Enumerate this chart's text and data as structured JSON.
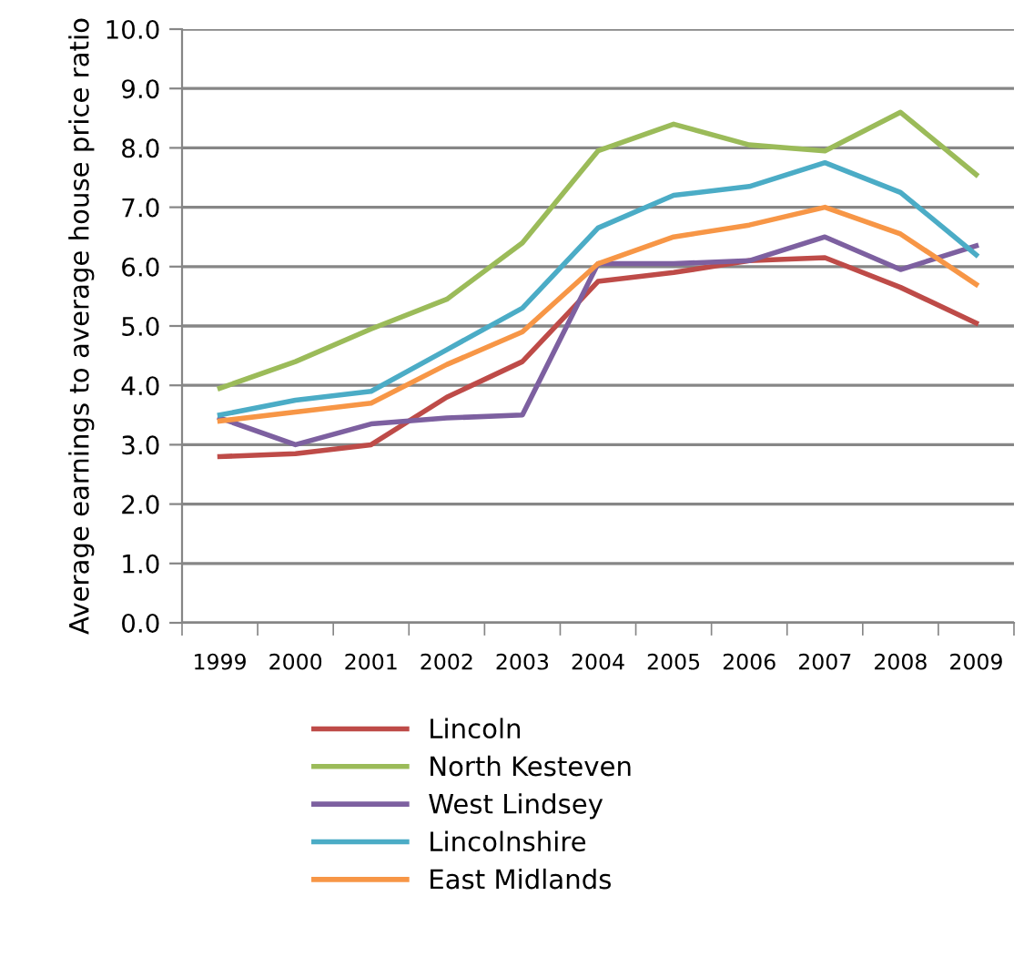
{
  "chart_data": {
    "type": "line",
    "ylabel": "Average earnings to average house price ratio",
    "categories": [
      "1999",
      "2000",
      "2001",
      "2002",
      "2003",
      "2004",
      "2005",
      "2006",
      "2007",
      "2008",
      "2009"
    ],
    "series": [
      {
        "name": "Lincoln",
        "color": "#be4b48",
        "values": [
          2.8,
          2.85,
          3.0,
          3.8,
          4.4,
          5.75,
          5.9,
          6.1,
          6.15,
          5.65,
          5.05
        ]
      },
      {
        "name": "North Kesteven",
        "color": "#9bbb59",
        "values": [
          3.95,
          4.4,
          4.95,
          5.45,
          6.4,
          7.95,
          8.4,
          8.05,
          7.95,
          8.6,
          7.55
        ]
      },
      {
        "name": "West Lindsey",
        "color": "#7d60a0",
        "values": [
          3.45,
          3.0,
          3.35,
          3.45,
          3.5,
          6.05,
          6.05,
          6.1,
          6.5,
          5.95,
          6.35
        ]
      },
      {
        "name": "Lincolnshire",
        "color": "#4bacc6",
        "values": [
          3.5,
          3.75,
          3.9,
          4.6,
          5.3,
          6.65,
          7.2,
          7.35,
          7.75,
          7.25,
          6.2
        ]
      },
      {
        "name": "East Midlands",
        "color": "#f79646",
        "values": [
          3.4,
          3.55,
          3.7,
          4.35,
          4.9,
          6.05,
          6.5,
          6.7,
          7.0,
          6.55,
          5.7
        ]
      }
    ],
    "ylim": [
      0,
      10
    ],
    "yticks": [
      {
        "value": 0,
        "label": "0.0"
      },
      {
        "value": 1,
        "label": "1.0"
      },
      {
        "value": 2,
        "label": "2.0"
      },
      {
        "value": 3,
        "label": "3.0"
      },
      {
        "value": 4,
        "label": "4.0"
      },
      {
        "value": 5,
        "label": "5.0"
      },
      {
        "value": 6,
        "label": "6.0"
      },
      {
        "value": 7,
        "label": "7.0"
      },
      {
        "value": 8,
        "label": "8.0"
      },
      {
        "value": 9,
        "label": "9.0"
      },
      {
        "value": 10,
        "label": "10.0"
      }
    ],
    "grid": "y",
    "legend": "bottom",
    "marker": "none",
    "line_style": "solid"
  }
}
